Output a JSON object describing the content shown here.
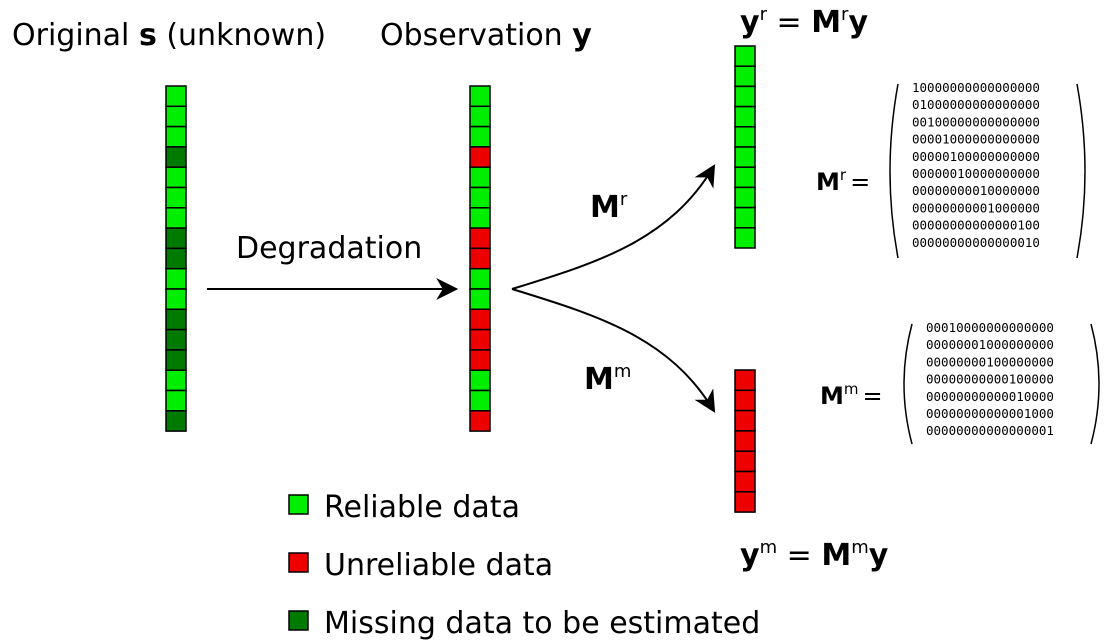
{
  "colors": {
    "reliable": "#00ee00",
    "unreliable": "#ee0000",
    "missing": "#007a00",
    "stroke": "#000000"
  },
  "columns": {
    "original": {
      "label_pre": "Original ",
      "label_bold": "s",
      "label_post": " (unknown)",
      "cells": [
        "reliable",
        "reliable",
        "reliable",
        "missing",
        "reliable",
        "reliable",
        "reliable",
        "missing",
        "missing",
        "reliable",
        "reliable",
        "missing",
        "missing",
        "missing",
        "reliable",
        "reliable",
        "missing"
      ]
    },
    "observation": {
      "label_pre": "Observation ",
      "label_bold": "y",
      "cells": [
        "reliable",
        "reliable",
        "reliable",
        "unreliable",
        "reliable",
        "reliable",
        "reliable",
        "unreliable",
        "unreliable",
        "reliable",
        "reliable",
        "unreliable",
        "unreliable",
        "unreliable",
        "reliable",
        "reliable",
        "unreliable"
      ]
    },
    "reliable_out": {
      "cells": [
        "reliable",
        "reliable",
        "reliable",
        "reliable",
        "reliable",
        "reliable",
        "reliable",
        "reliable",
        "reliable",
        "reliable"
      ]
    },
    "missing_out": {
      "cells": [
        "unreliable",
        "unreliable",
        "unreliable",
        "unreliable",
        "unreliable",
        "unreliable",
        "unreliable"
      ]
    }
  },
  "arrows": {
    "degradation_label": "Degradation",
    "upper_label": "M",
    "upper_sup": "r",
    "lower_label": "M",
    "lower_sup": "m"
  },
  "equations": {
    "top": {
      "lhs": "y",
      "lhs_sup": "r",
      "eq": " = ",
      "rhs_m": "M",
      "rhs_sup": "r",
      "rhs_y": "y"
    },
    "bottom": {
      "lhs": "y",
      "lhs_sup": "m",
      "eq": " = ",
      "rhs_m": "M",
      "rhs_sup": "m",
      "rhs_y": "y"
    }
  },
  "matrices": {
    "reliable": {
      "label": "M",
      "sup": "r",
      "eq": "=",
      "rows": [
        "10000000000000000",
        "01000000000000000",
        "00100000000000000",
        "00001000000000000",
        "00000100000000000",
        "00000010000000000",
        "00000000010000000",
        "00000000001000000",
        "00000000000000100",
        "00000000000000010"
      ]
    },
    "missing": {
      "label": "M",
      "sup": "m",
      "eq": "=",
      "rows": [
        "00010000000000000",
        "00000001000000000",
        "00000000100000000",
        "00000000000100000",
        "00000000000010000",
        "00000000000001000",
        "00000000000000001"
      ]
    }
  },
  "legend": [
    {
      "color": "reliable",
      "label": "Reliable data"
    },
    {
      "color": "unreliable",
      "label": "Unreliable data"
    },
    {
      "color": "missing",
      "label": "Missing data to be estimated"
    }
  ]
}
